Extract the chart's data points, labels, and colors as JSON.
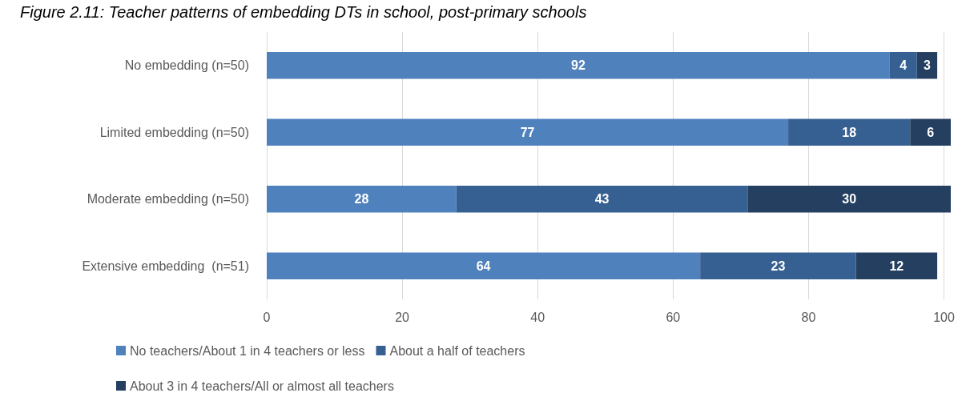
{
  "chart_data": {
    "type": "bar",
    "orientation": "horizontal",
    "stacked": true,
    "title": "Figure 2.11: Teacher patterns of embedding DTs in school, post-primary schools",
    "categories": [
      "No embedding (n=50)",
      "Limited embedding (n=50)",
      "Moderate embedding (n=50)",
      "Extensive embedding  (n=51)"
    ],
    "series": [
      {
        "name": "No teachers/About 1 in 4 teachers or less",
        "color": "#4f81bd",
        "values": [
          92,
          77,
          28,
          64
        ]
      },
      {
        "name": "About a half of teachers",
        "color": "#376092",
        "values": [
          4,
          18,
          43,
          23
        ]
      },
      {
        "name": "About 3 in 4 teachers/All or almost all teachers",
        "color": "#243f60",
        "values": [
          3,
          6,
          30,
          12
        ]
      }
    ],
    "xlim": [
      0,
      101
    ],
    "xticks": [
      0,
      20,
      40,
      60,
      80,
      100
    ],
    "grid": "x",
    "legend": "bottom",
    "data_labels": true
  }
}
